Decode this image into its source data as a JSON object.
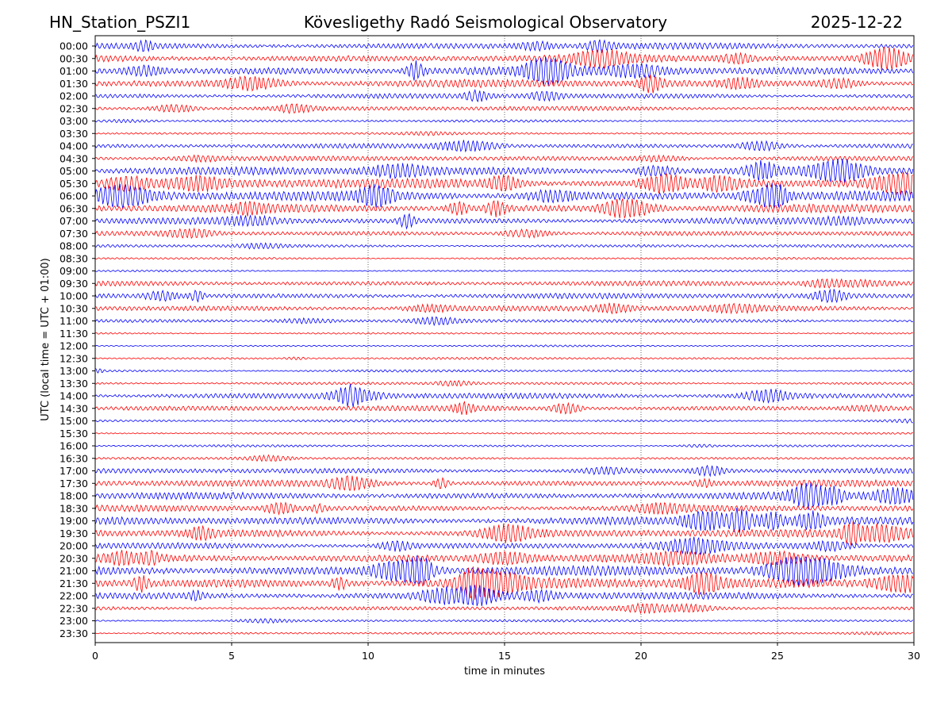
{
  "header": {
    "station": "HN_Station_PSZI1",
    "observatory": "Kövesligethy Radó Seismological Observatory",
    "date": "2025-12-22"
  },
  "chart_data": {
    "type": "line",
    "title": "Kövesligethy Radó Seismological Observatory",
    "xlabel": "time in minutes",
    "ylabel": "UTC (local time = UTC + 01:00)",
    "xlim": [
      0,
      30
    ],
    "xticks": [
      0,
      5,
      10,
      15,
      20,
      25,
      30
    ],
    "xgrid": "dotted vertical at each x tick",
    "colors": {
      "even_row": "#0000ff",
      "odd_row": "#ff0000"
    },
    "rows": [
      "00:00",
      "00:30",
      "01:00",
      "01:30",
      "02:00",
      "02:30",
      "03:00",
      "03:30",
      "04:00",
      "04:30",
      "05:00",
      "05:30",
      "06:00",
      "06:30",
      "07:00",
      "07:30",
      "08:00",
      "08:30",
      "09:00",
      "09:30",
      "10:00",
      "10:30",
      "11:00",
      "11:30",
      "12:00",
      "12:30",
      "13:00",
      "13:30",
      "14:00",
      "14:30",
      "15:00",
      "15:30",
      "16:00",
      "16:30",
      "17:00",
      "17:30",
      "18:00",
      "18:30",
      "19:00",
      "19:30",
      "20:00",
      "20:30",
      "21:00",
      "21:30",
      "22:00",
      "22:30",
      "23:00",
      "23:30"
    ],
    "activity_level": [
      0.55,
      0.65,
      0.8,
      0.7,
      0.4,
      0.35,
      0.12,
      0.1,
      0.35,
      0.4,
      0.75,
      0.95,
      0.9,
      0.75,
      0.55,
      0.35,
      0.18,
      0.08,
      0.05,
      0.4,
      0.45,
      0.5,
      0.25,
      0.06,
      0.05,
      0.1,
      0.12,
      0.15,
      0.5,
      0.45,
      0.12,
      0.06,
      0.1,
      0.12,
      0.4,
      0.55,
      0.6,
      0.55,
      0.75,
      0.7,
      0.55,
      0.8,
      0.9,
      1.0,
      0.7,
      0.3,
      0.12,
      0.1
    ]
  }
}
